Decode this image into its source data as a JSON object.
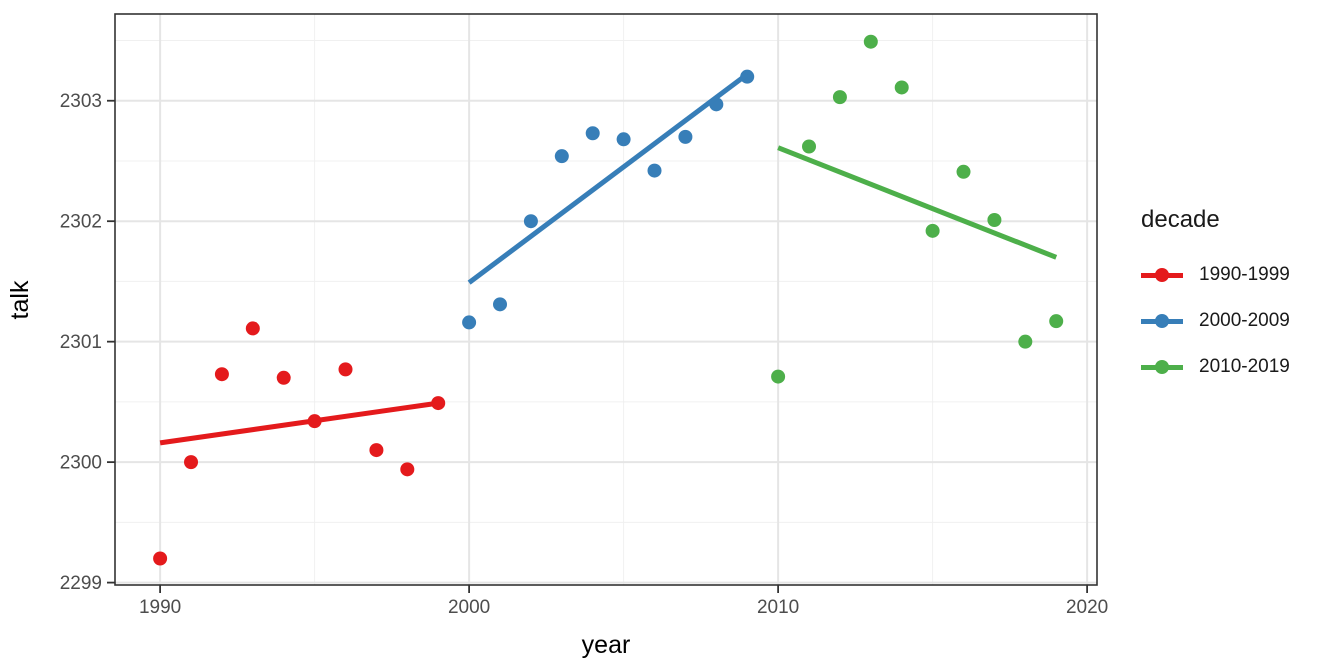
{
  "figure": {
    "background": "#ffffff",
    "panel_border_color": "#333333",
    "grid_major_color": "#e5e5e5",
    "grid_minor_color": "#f0f0f0",
    "tick_color": "#333333",
    "tick_label_color": "#4d4d4d",
    "axis_title_color": "#000000"
  },
  "legend": {
    "title": "decade",
    "entries": [
      {
        "label": "1990-1999",
        "color": "#E41A1C"
      },
      {
        "label": "2000-2009",
        "color": "#377EB8"
      },
      {
        "label": "2010-2019",
        "color": "#4DAF4A"
      }
    ]
  },
  "chart_data": {
    "type": "scatter",
    "title": "",
    "xlabel": "year",
    "ylabel": "talk",
    "xlim": [
      1988.54,
      2020.32
    ],
    "ylim": [
      2298.98,
      2303.72
    ],
    "x_ticks": [
      1990,
      2000,
      2010,
      2020
    ],
    "x_minor_ticks": [
      1995,
      2005,
      2015
    ],
    "y_ticks": [
      2299,
      2300,
      2301,
      2302,
      2303
    ],
    "y_minor_ticks": [
      2299.5,
      2300.5,
      2301.5,
      2302.5,
      2303.5
    ],
    "grid": true,
    "legend_title": "decade",
    "legend_position": "right",
    "series": [
      {
        "name": "1990-1999",
        "color": "#E41A1C",
        "points": [
          [
            1990,
            2299.2
          ],
          [
            1991,
            2300.0
          ],
          [
            1992,
            2300.73
          ],
          [
            1993,
            2301.11
          ],
          [
            1994,
            2300.7
          ],
          [
            1995,
            2300.34
          ],
          [
            1996,
            2300.77
          ],
          [
            1997,
            2300.1
          ],
          [
            1998,
            2299.94
          ],
          [
            1999,
            2300.49
          ]
        ],
        "trend": {
          "x1": 1990,
          "y1": 2300.16,
          "x2": 1999,
          "y2": 2300.49
        }
      },
      {
        "name": "2000-2009",
        "color": "#377EB8",
        "points": [
          [
            2000,
            2301.16
          ],
          [
            2001,
            2301.31
          ],
          [
            2002,
            2302.0
          ],
          [
            2003,
            2302.54
          ],
          [
            2004,
            2302.73
          ],
          [
            2005,
            2302.68
          ],
          [
            2006,
            2302.42
          ],
          [
            2007,
            2302.7
          ],
          [
            2008,
            2302.97
          ],
          [
            2009,
            2303.2
          ]
        ],
        "trend": {
          "x1": 2000,
          "y1": 2301.49,
          "x2": 2009,
          "y2": 2303.22
        }
      },
      {
        "name": "2010-2019",
        "color": "#4DAF4A",
        "points": [
          [
            2010,
            2300.71
          ],
          [
            2011,
            2302.62
          ],
          [
            2012,
            2303.03
          ],
          [
            2013,
            2303.49
          ],
          [
            2014,
            2303.11
          ],
          [
            2015,
            2301.92
          ],
          [
            2016,
            2302.41
          ],
          [
            2017,
            2302.01
          ],
          [
            2018,
            2301.0
          ],
          [
            2019,
            2301.17
          ]
        ],
        "trend": {
          "x1": 2010,
          "y1": 2302.61,
          "x2": 2019,
          "y2": 2301.7
        }
      }
    ]
  }
}
